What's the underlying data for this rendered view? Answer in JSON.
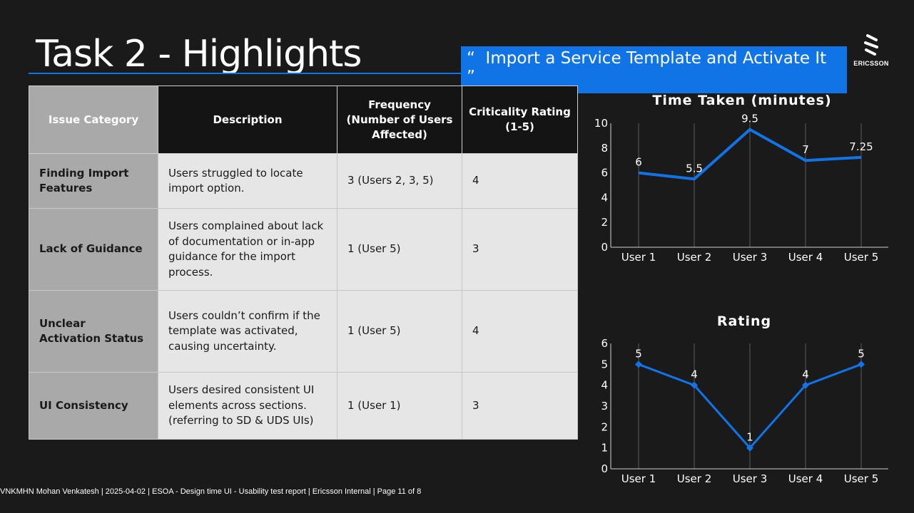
{
  "page_title": "Task 2 - Highlights",
  "quote": {
    "open": "“",
    "text": "Import a Service Template and Activate It",
    "close": "”"
  },
  "logo": {
    "icon": "ericsson-e-icon",
    "text": "ERICSSON"
  },
  "table": {
    "headers": [
      "Issue Category",
      "Description",
      "Frequency (Number of Users Affected)",
      "Criticality Rating (1-5)"
    ],
    "rows": [
      {
        "category": "Finding Import Features",
        "description": "Users struggled to locate import option.",
        "frequency": "3 (Users 2, 3, 5)",
        "rating": "4"
      },
      {
        "category": "Lack of Guidance",
        "description": "Users complained about lack of documentation or in-app guidance for the import process.",
        "frequency": "1 (User 5)",
        "rating": "3"
      },
      {
        "category": "Unclear Activation Status",
        "description": "Users couldn’t confirm if the template was activated, causing uncertainty.",
        "frequency": "1 (User 5)",
        "rating": "4"
      },
      {
        "category": "UI Consistency",
        "description": "Users desired consistent UI elements across sections. (referring to SD & UDS UIs)",
        "frequency": "1 (User 1)",
        "rating": "3"
      }
    ]
  },
  "chart_data": [
    {
      "type": "line",
      "title": "Time Taken (minutes)",
      "categories": [
        "User 1",
        "User 2",
        "User 3",
        "User 4",
        "User 5"
      ],
      "values": [
        6,
        5.5,
        9.5,
        7,
        7.25
      ],
      "data_labels": [
        "6",
        "5.5",
        "9.5",
        "7",
        "7.25"
      ],
      "ylim": [
        0,
        10
      ],
      "yticks": [
        0,
        2,
        4,
        6,
        8,
        10
      ],
      "color": "#1174e6",
      "markers": false,
      "grid": "vertical"
    },
    {
      "type": "line",
      "title": "Rating",
      "categories": [
        "User 1",
        "User 2",
        "User 3",
        "User 4",
        "User 5"
      ],
      "values": [
        5,
        4,
        1,
        4,
        5
      ],
      "data_labels": [
        "5",
        "4",
        "1",
        "4",
        "5"
      ],
      "ylim": [
        0,
        6
      ],
      "yticks": [
        0,
        1,
        2,
        3,
        4,
        5,
        6
      ],
      "color": "#1174e6",
      "markers": true,
      "grid": "vertical"
    }
  ],
  "footer": "VNKMHN Mohan Venkatesh  |  2025-04-02  |  ESOA - Design time UI - Usability test report  |  Ericsson Internal  |  Page 11 of 8"
}
